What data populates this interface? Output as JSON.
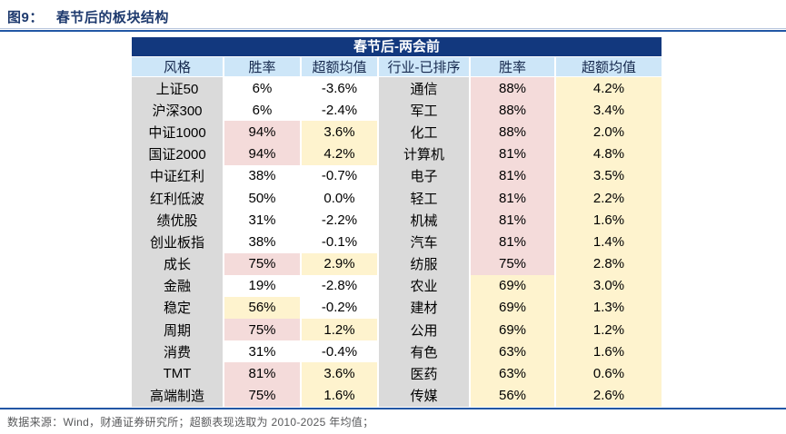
{
  "figure": {
    "label": "图9：",
    "title": "春节后的板块结构"
  },
  "table": {
    "banner": "春节后-两会前",
    "columns": [
      "风格",
      "胜率",
      "超额均值",
      "行业-已排序",
      "胜率",
      "超额均值"
    ],
    "left_rows": [
      {
        "name": "上证50",
        "win": "6%",
        "excess": "-3.6%",
        "win_bg": "white",
        "excess_bg": "white"
      },
      {
        "name": "沪深300",
        "win": "6%",
        "excess": "-2.4%",
        "win_bg": "white",
        "excess_bg": "white"
      },
      {
        "name": "中证1000",
        "win": "94%",
        "excess": "3.6%",
        "win_bg": "pink",
        "excess_bg": "yellow"
      },
      {
        "name": "国证2000",
        "win": "94%",
        "excess": "4.2%",
        "win_bg": "pink",
        "excess_bg": "yellow"
      },
      {
        "name": "中证红利",
        "win": "38%",
        "excess": "-0.7%",
        "win_bg": "white",
        "excess_bg": "white"
      },
      {
        "name": "红利低波",
        "win": "50%",
        "excess": "0.0%",
        "win_bg": "white",
        "excess_bg": "white"
      },
      {
        "name": "绩优股",
        "win": "31%",
        "excess": "-2.2%",
        "win_bg": "white",
        "excess_bg": "white"
      },
      {
        "name": "创业板指",
        "win": "38%",
        "excess": "-0.1%",
        "win_bg": "white",
        "excess_bg": "white"
      },
      {
        "name": "成长",
        "win": "75%",
        "excess": "2.9%",
        "win_bg": "pink",
        "excess_bg": "yellow"
      },
      {
        "name": "金融",
        "win": "19%",
        "excess": "-2.8%",
        "win_bg": "white",
        "excess_bg": "white"
      },
      {
        "name": "稳定",
        "win": "56%",
        "excess": "-0.2%",
        "win_bg": "yellow",
        "excess_bg": "white"
      },
      {
        "name": "周期",
        "win": "75%",
        "excess": "1.2%",
        "win_bg": "pink",
        "excess_bg": "yellow"
      },
      {
        "name": "消费",
        "win": "31%",
        "excess": "-0.4%",
        "win_bg": "white",
        "excess_bg": "white"
      },
      {
        "name": "TMT",
        "win": "81%",
        "excess": "3.6%",
        "win_bg": "pink",
        "excess_bg": "yellow"
      },
      {
        "name": "高端制造",
        "win": "75%",
        "excess": "1.6%",
        "win_bg": "pink",
        "excess_bg": "yellow"
      }
    ],
    "right_rows": [
      {
        "name": "通信",
        "win": "88%",
        "excess": "4.2%",
        "win_bg": "pink",
        "excess_bg": "yellow"
      },
      {
        "name": "军工",
        "win": "88%",
        "excess": "3.4%",
        "win_bg": "pink",
        "excess_bg": "yellow"
      },
      {
        "name": "化工",
        "win": "88%",
        "excess": "2.0%",
        "win_bg": "pink",
        "excess_bg": "yellow"
      },
      {
        "name": "计算机",
        "win": "81%",
        "excess": "4.8%",
        "win_bg": "pink",
        "excess_bg": "yellow"
      },
      {
        "name": "电子",
        "win": "81%",
        "excess": "3.5%",
        "win_bg": "pink",
        "excess_bg": "yellow"
      },
      {
        "name": "轻工",
        "win": "81%",
        "excess": "2.2%",
        "win_bg": "pink",
        "excess_bg": "yellow"
      },
      {
        "name": "机械",
        "win": "81%",
        "excess": "1.6%",
        "win_bg": "pink",
        "excess_bg": "yellow"
      },
      {
        "name": "汽车",
        "win": "81%",
        "excess": "1.4%",
        "win_bg": "pink",
        "excess_bg": "yellow"
      },
      {
        "name": "纺服",
        "win": "75%",
        "excess": "2.8%",
        "win_bg": "pink",
        "excess_bg": "yellow"
      },
      {
        "name": "农业",
        "win": "69%",
        "excess": "3.0%",
        "win_bg": "yellow",
        "excess_bg": "yellow"
      },
      {
        "name": "建材",
        "win": "69%",
        "excess": "1.3%",
        "win_bg": "yellow",
        "excess_bg": "yellow"
      },
      {
        "name": "公用",
        "win": "69%",
        "excess": "1.2%",
        "win_bg": "yellow",
        "excess_bg": "yellow"
      },
      {
        "name": "有色",
        "win": "63%",
        "excess": "1.6%",
        "win_bg": "yellow",
        "excess_bg": "yellow"
      },
      {
        "name": "医药",
        "win": "63%",
        "excess": "0.6%",
        "win_bg": "yellow",
        "excess_bg": "yellow"
      },
      {
        "name": "传媒",
        "win": "56%",
        "excess": "2.6%",
        "win_bg": "yellow",
        "excess_bg": "yellow"
      }
    ]
  },
  "footer": {
    "text": "数据来源：Wind，财通证券研究所；超额表现选取为 2010-2025 年均值；"
  },
  "colors": {
    "banner_bg": "#12387e",
    "header_bg": "#cde6f8",
    "name_col_bg": "#dadada",
    "highlight_pink": "#f4dbda",
    "highlight_yellow": "#fef3ce",
    "title_text": "#1e3a6e",
    "rule_blue": "#2257a5",
    "footer_text": "#58595b"
  },
  "chart_data": {
    "type": "table",
    "title": "春节后-两会前",
    "figure_title": "图9： 春节后的板块结构",
    "columns": [
      "风格",
      "胜率",
      "超额均值",
      "行业-已排序",
      "胜率",
      "超额均值"
    ],
    "series": [
      {
        "name": "风格-胜率(%)",
        "categories": [
          "上证50",
          "沪深300",
          "中证1000",
          "国证2000",
          "中证红利",
          "红利低波",
          "绩优股",
          "创业板指",
          "成长",
          "金融",
          "稳定",
          "周期",
          "消费",
          "TMT",
          "高端制造"
        ],
        "values": [
          6,
          6,
          94,
          94,
          38,
          50,
          31,
          38,
          75,
          19,
          56,
          75,
          31,
          81,
          75
        ]
      },
      {
        "name": "风格-超额均值(%)",
        "categories": [
          "上证50",
          "沪深300",
          "中证1000",
          "国证2000",
          "中证红利",
          "红利低波",
          "绩优股",
          "创业板指",
          "成长",
          "金融",
          "稳定",
          "周期",
          "消费",
          "TMT",
          "高端制造"
        ],
        "values": [
          -3.6,
          -2.4,
          3.6,
          4.2,
          -0.7,
          0.0,
          -2.2,
          -0.1,
          2.9,
          -2.8,
          -0.2,
          1.2,
          -0.4,
          3.6,
          1.6
        ]
      },
      {
        "name": "行业-胜率(%)",
        "categories": [
          "通信",
          "军工",
          "化工",
          "计算机",
          "电子",
          "轻工",
          "机械",
          "汽车",
          "纺服",
          "农业",
          "建材",
          "公用",
          "有色",
          "医药",
          "传媒"
        ],
        "values": [
          88,
          88,
          88,
          81,
          81,
          81,
          81,
          81,
          75,
          69,
          69,
          69,
          63,
          63,
          56
        ]
      },
      {
        "name": "行业-超额均值(%)",
        "categories": [
          "通信",
          "军工",
          "化工",
          "计算机",
          "电子",
          "轻工",
          "机械",
          "汽车",
          "纺服",
          "农业",
          "建材",
          "公用",
          "有色",
          "医药",
          "传媒"
        ],
        "values": [
          4.2,
          3.4,
          2.0,
          4.8,
          3.5,
          2.2,
          1.6,
          1.4,
          2.8,
          3.0,
          1.3,
          1.2,
          1.6,
          0.6,
          2.6
        ]
      }
    ]
  }
}
